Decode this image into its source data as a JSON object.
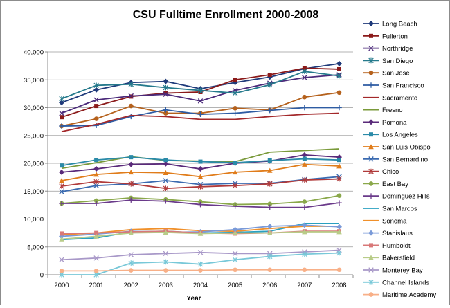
{
  "chart_data": {
    "type": "line",
    "title": "CSU Fulltime Enrollment 2000-2008",
    "xlabel": "Year",
    "ylabel": "",
    "categories": [
      "2000",
      "2001",
      "2002",
      "2003",
      "2004",
      "2005",
      "2006",
      "2007",
      "2008"
    ],
    "ylim": [
      0,
      40000
    ],
    "yticks": [
      0,
      5000,
      10000,
      15000,
      20000,
      25000,
      30000,
      35000,
      40000
    ],
    "ytick_labels": [
      "0",
      "5,000",
      "10,000",
      "15,000",
      "20,000",
      "25,000",
      "30,000",
      "35,000",
      "40,000"
    ],
    "grid": "horizontal",
    "legend": "right",
    "series": [
      {
        "name": "Long Beach",
        "color": "#1f3a7a",
        "marker": "diamond",
        "values": [
          30900,
          33200,
          34500,
          34700,
          33400,
          34500,
          35500,
          37000,
          37900
        ]
      },
      {
        "name": "Fullerton",
        "color": "#8b1a1a",
        "marker": "square",
        "values": [
          28300,
          30300,
          32000,
          32600,
          32800,
          35000,
          35900,
          37100,
          36900
        ]
      },
      {
        "name": "Northridge",
        "color": "#4b2a7a",
        "marker": "x",
        "values": [
          29000,
          31400,
          32100,
          32400,
          31200,
          33100,
          34400,
          35400,
          35900
        ]
      },
      {
        "name": "San Diego",
        "color": "#257a8c",
        "marker": "star",
        "values": [
          31600,
          34000,
          34200,
          33600,
          33100,
          32600,
          34100,
          36500,
          35700
        ]
      },
      {
        "name": "San Jose",
        "color": "#b5611c",
        "marker": "circle",
        "values": [
          26700,
          28000,
          30300,
          29000,
          29000,
          29900,
          29600,
          31900,
          32700
        ]
      },
      {
        "name": "San Francisco",
        "color": "#2e5ca3",
        "marker": "plus",
        "values": [
          26700,
          26800,
          28400,
          29600,
          28800,
          29000,
          29500,
          30000,
          30000
        ]
      },
      {
        "name": "Sacramento",
        "color": "#a3282a",
        "marker": "none",
        "values": [
          25700,
          27000,
          28600,
          28400,
          27900,
          27900,
          28400,
          28800,
          29000
        ]
      },
      {
        "name": "Fresno",
        "color": "#7a9a3a",
        "marker": "none",
        "values": [
          19100,
          20100,
          21200,
          20500,
          20400,
          20300,
          22000,
          22300,
          22600
        ]
      },
      {
        "name": "Pomona",
        "color": "#5a2a7a",
        "marker": "diamond",
        "values": [
          18400,
          19000,
          19800,
          19900,
          19000,
          20000,
          20400,
          21500,
          21100
        ]
      },
      {
        "name": "Los Angeles",
        "color": "#2a8aa8",
        "marker": "square",
        "values": [
          19600,
          20600,
          21100,
          20600,
          20300,
          20100,
          20500,
          20800,
          20600
        ]
      },
      {
        "name": "San Luis Obispo",
        "color": "#e07c1a",
        "marker": "triangle",
        "values": [
          16900,
          18000,
          18400,
          18300,
          17600,
          18400,
          18700,
          19800,
          19500
        ]
      },
      {
        "name": "San Bernardino",
        "color": "#3a6ab0",
        "marker": "x",
        "values": [
          14900,
          16000,
          16300,
          16900,
          16200,
          16400,
          16400,
          17100,
          17600
        ]
      },
      {
        "name": "Chico",
        "color": "#b03a3a",
        "marker": "star",
        "values": [
          15900,
          16700,
          16300,
          15500,
          15800,
          16000,
          16300,
          17000,
          17200
        ]
      },
      {
        "name": "East Bay",
        "color": "#8aa84a",
        "marker": "circle",
        "values": [
          12800,
          13300,
          13800,
          13500,
          13100,
          12600,
          12700,
          13100,
          14200
        ]
      },
      {
        "name": "Dominguez Hills",
        "color": "#6a3a8a",
        "marker": "plus",
        "values": [
          12800,
          12800,
          13400,
          13200,
          12600,
          12300,
          12100,
          12100,
          12900
        ]
      },
      {
        "name": "San Marcos",
        "color": "#2aa0c0",
        "marker": "none",
        "values": [
          6300,
          6600,
          7700,
          7800,
          7500,
          7600,
          7800,
          9200,
          9200
        ]
      },
      {
        "name": "Sonoma",
        "color": "#f0902a",
        "marker": "none",
        "values": [
          7200,
          7500,
          8100,
          8300,
          7900,
          7800,
          8300,
          8700,
          8700
        ]
      },
      {
        "name": "Stanislaus",
        "color": "#7a9ad8",
        "marker": "diamond",
        "values": [
          6900,
          7300,
          7800,
          7600,
          7700,
          8100,
          8700,
          8900,
          8600
        ]
      },
      {
        "name": "Humboldt",
        "color": "#d87878",
        "marker": "square",
        "values": [
          7400,
          7500,
          7700,
          7800,
          7500,
          7400,
          7500,
          7800,
          7800
        ]
      },
      {
        "name": "Bakersfield",
        "color": "#b8cc88",
        "marker": "triangle",
        "values": [
          6400,
          6900,
          7500,
          7600,
          7400,
          7500,
          7500,
          7700,
          7700
        ]
      },
      {
        "name": "Monterey Bay",
        "color": "#a898c8",
        "marker": "x",
        "values": [
          2700,
          3000,
          3600,
          3800,
          4000,
          3800,
          3800,
          4100,
          4400
        ]
      },
      {
        "name": "Channel Islands",
        "color": "#78c8d8",
        "marker": "star",
        "values": [
          0,
          0,
          2100,
          2300,
          1900,
          2700,
          3300,
          3700,
          3900
        ]
      },
      {
        "name": "Maritime Academy",
        "color": "#f8b088",
        "marker": "circle",
        "values": [
          700,
          700,
          800,
          800,
          800,
          900,
          900,
          900,
          900
        ]
      }
    ]
  }
}
